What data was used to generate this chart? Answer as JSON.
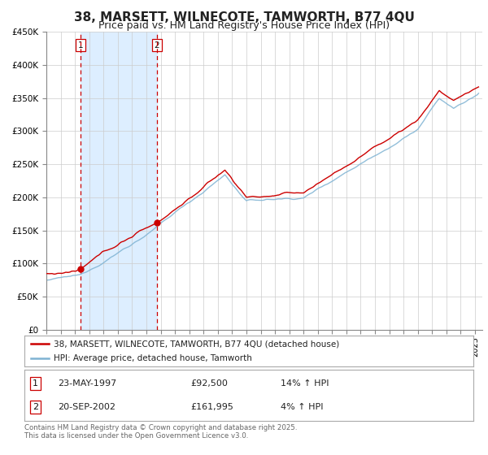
{
  "title": "38, MARSETT, WILNECOTE, TAMWORTH, B77 4QU",
  "subtitle": "Price paid vs. HM Land Registry's House Price Index (HPI)",
  "title_fontsize": 11,
  "subtitle_fontsize": 9,
  "background_color": "#ffffff",
  "plot_bg_color": "#ffffff",
  "grid_color": "#cccccc",
  "hpi_line_color": "#7fb3d3",
  "price_line_color": "#cc0000",
  "sale1_date": 1997.38,
  "sale1_price": 92500,
  "sale1_label": "1",
  "sale2_date": 2002.72,
  "sale2_price": 161995,
  "sale2_label": "2",
  "shade_color": "#ddeeff",
  "dashed_line_color": "#cc0000",
  "ylim_min": 0,
  "ylim_max": 450000,
  "xlim_min": 1995.0,
  "xlim_max": 2025.5,
  "legend1_label": "38, MARSETT, WILNECOTE, TAMWORTH, B77 4QU (detached house)",
  "legend2_label": "HPI: Average price, detached house, Tamworth",
  "table_row1": [
    "1",
    "23-MAY-1997",
    "£92,500",
    "14% ↑ HPI"
  ],
  "table_row2": [
    "2",
    "20-SEP-2002",
    "£161,995",
    "4% ↑ HPI"
  ],
  "footer_text": "Contains HM Land Registry data © Crown copyright and database right 2025.\nThis data is licensed under the Open Government Licence v3.0.",
  "ytick_labels": [
    "£0",
    "£50K",
    "£100K",
    "£150K",
    "£200K",
    "£250K",
    "£300K",
    "£350K",
    "£400K",
    "£450K"
  ],
  "ytick_values": [
    0,
    50000,
    100000,
    150000,
    200000,
    250000,
    300000,
    350000,
    400000,
    450000
  ]
}
